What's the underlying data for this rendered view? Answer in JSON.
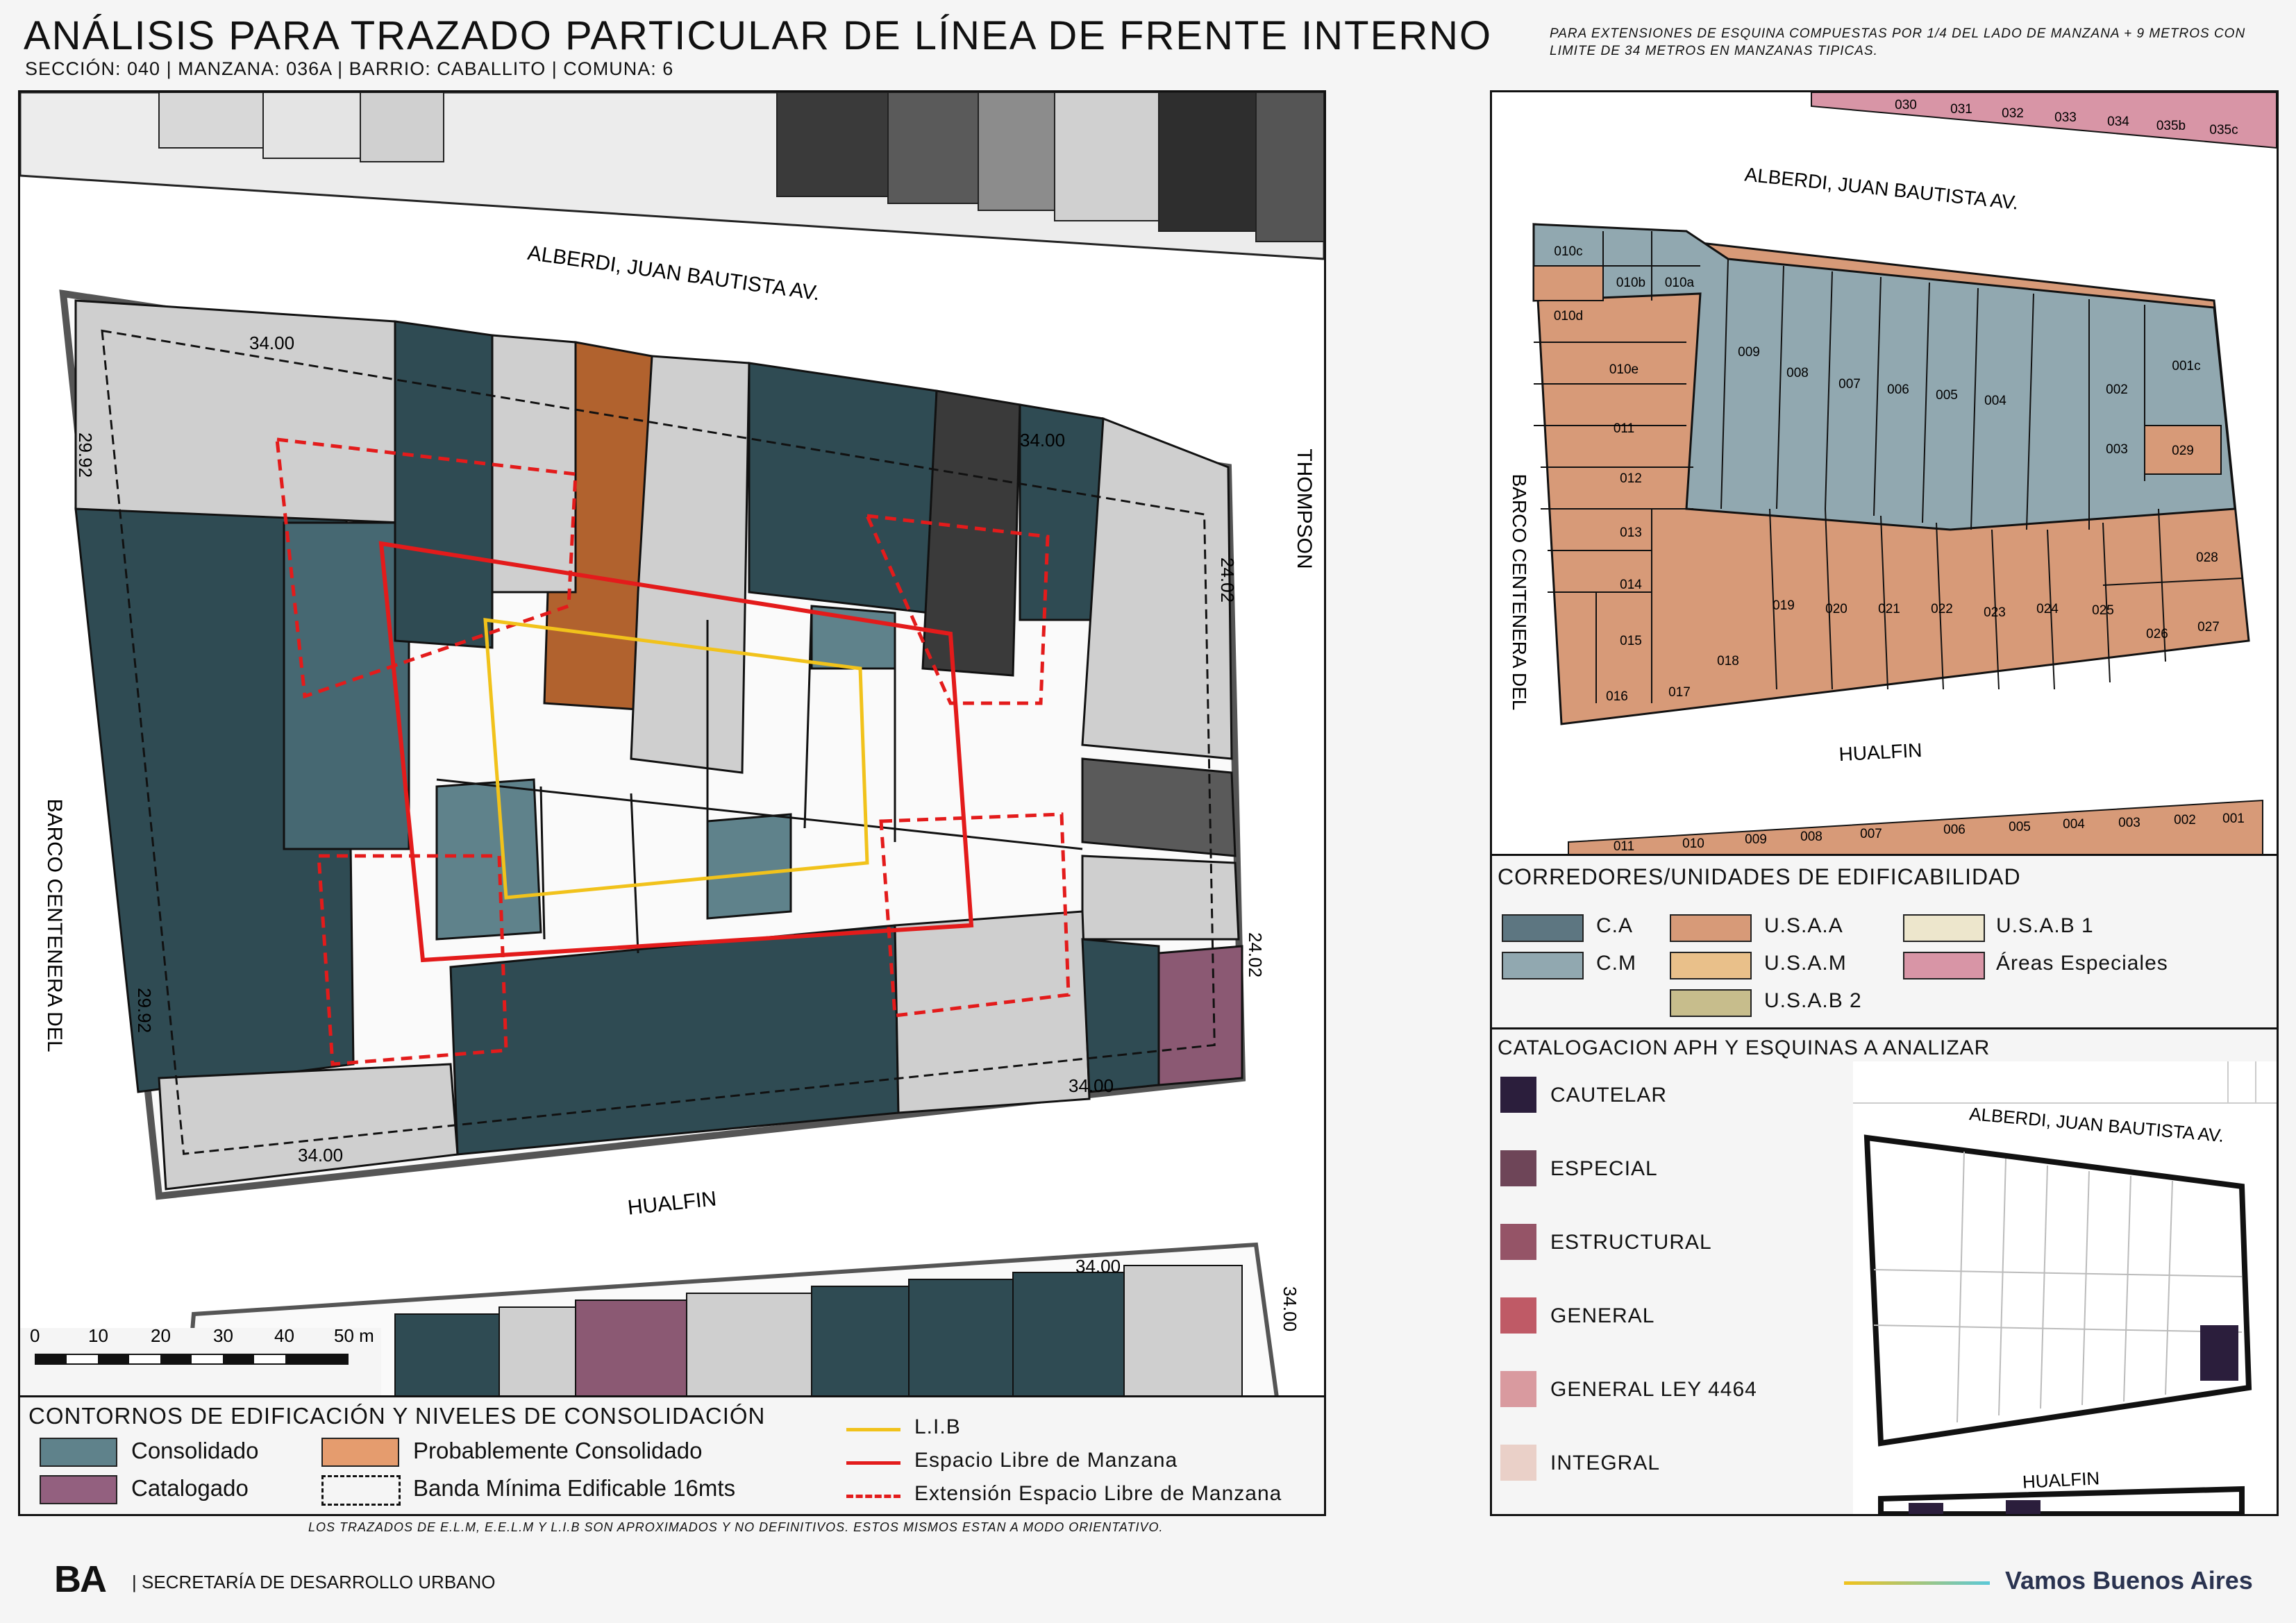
{
  "header": {
    "title": "ANÁLISIS PARA TRAZADO PARTICULAR DE LÍNEA DE FRENTE INTERNO",
    "subtitle": "SECCIÓN: 040 |  MANZANA: 036A | BARRIO: CABALLITO | COMUNA: 6",
    "note": "PARA EXTENSIONES DE ESQUINA COMPUESTAS POR 1/4 DEL LADO DE MANZANA + 9 METROS CON LIMITE DE 34 METROS EN MANZANAS TIPICAS."
  },
  "main_map": {
    "street_top": "ALBERDI, JUAN BAUTISTA AV.",
    "street_bottom": "HUALFIN",
    "street_left": "BARCO CENTENERA DEL",
    "street_right": "THOMPSON",
    "measures": [
      "34.00",
      "34.00",
      "29.92",
      "24.02",
      "24.02",
      "29.92",
      "34.00",
      "34.00",
      "34.00",
      "34.00"
    ],
    "scale": {
      "labels": [
        "0",
        "10",
        "20",
        "30",
        "40",
        "50 m"
      ]
    }
  },
  "legend_left": {
    "title": "CONTORNOS DE EDIFICACIÓN Y NIVELES DE CONSOLIDACIÓN",
    "items": [
      {
        "label": "Consolidado",
        "color": "#5f828b"
      },
      {
        "label": "Probablemente Consolidado",
        "color": "#e59c6e"
      },
      {
        "label": "Catalogado",
        "color": "#93607f"
      },
      {
        "label": "Banda Mínima Edificable 16mts",
        "color": "dashed-black"
      }
    ],
    "lines": [
      {
        "label": "L.I.B",
        "color": "#f1c21b"
      },
      {
        "label": "Espacio Libre de Manzana",
        "color": "#e31b1b"
      },
      {
        "label": "Extensión Espacio Libre de Manzana",
        "color": "#e31b1b"
      }
    ]
  },
  "parcel_map": {
    "street_top": "ALBERDI, JUAN BAUTISTA AV.",
    "street_bottom": "HUALFIN",
    "street_left": "BARCO CENTENERA DEL",
    "top_strip": [
      "030",
      "031",
      "032",
      "033",
      "034",
      "035b",
      "035c"
    ],
    "bottom_strip": [
      "011",
      "010",
      "009",
      "008",
      "007",
      "006",
      "005",
      "004",
      "003",
      "002",
      "001"
    ],
    "parcels_cm": [
      "010c",
      "010b",
      "010a",
      "009",
      "008",
      "007",
      "006",
      "005",
      "004",
      "002",
      "001c",
      "003"
    ],
    "parcels_usaa": [
      "010d",
      "010e",
      "011",
      "012",
      "013",
      "014",
      "015",
      "016",
      "017",
      "018",
      "019",
      "020",
      "021",
      "022",
      "023",
      "024",
      "025",
      "026",
      "027",
      "028",
      "029"
    ]
  },
  "legend_right": {
    "title": "CORREDORES/UNIDADES DE EDIFICABILIDAD",
    "items": [
      {
        "label": "C.A",
        "color": "#5d7681"
      },
      {
        "label": "U.S.A.A",
        "color": "#d79a78"
      },
      {
        "label": "U.S.A.B 1",
        "color": "#ede6cc"
      },
      {
        "label": "C.M",
        "color": "#91a8b0"
      },
      {
        "label": "U.S.A.M",
        "color": "#e9c08a"
      },
      {
        "label": "Áreas Especiales",
        "color": "#d895a6"
      },
      {
        "label": "U.S.A.B 2",
        "color": "#c7bd8c"
      }
    ]
  },
  "catalog": {
    "title": "CATALOGACION APH Y ESQUINAS A ANALIZAR",
    "items": [
      {
        "label": "CAUTELAR",
        "color": "#2b1e3c"
      },
      {
        "label": "ESPECIAL",
        "color": "#6e4558"
      },
      {
        "label": "ESTRUCTURAL",
        "color": "#955467"
      },
      {
        "label": "GENERAL",
        "color": "#bf5a66"
      },
      {
        "label": "GENERAL LEY 4464",
        "color": "#d99a9f"
      },
      {
        "label": "INTEGRAL",
        "color": "#ead0c8"
      }
    ],
    "mini_map": {
      "street_top": "ALBERDI, JUAN BAUTISTA AV.",
      "street_bottom": "HUALFIN"
    }
  },
  "footer": {
    "note": "LOS TRAZADOS DE E.L.M, E.E.L.M Y L.I.B SON APROXIMADOS Y NO DEFINITIVOS. ESTOS MISMOS ESTAN A MODO ORIENTATIVO.",
    "logo": "BA",
    "org": "| SECRETARÍA DE DESARROLLO URBANO",
    "slogan": "Vamos Buenos Aires"
  }
}
